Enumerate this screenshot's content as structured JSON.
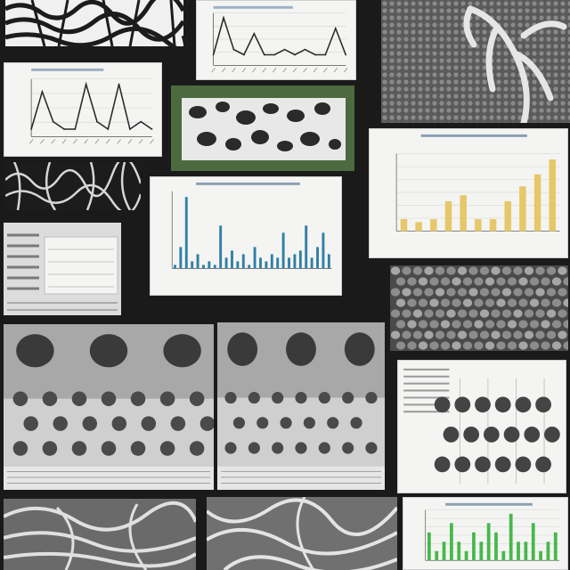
{
  "collage": {
    "theme_colors": {
      "background": "#1a1a1a",
      "card": "#f4f4f2",
      "line_series": "#2a2a2a",
      "bar_blue": "#2f7fa6",
      "bar_yellow": "#e6c86a",
      "bar_green": "#46b84a",
      "green_frame": "#4b6b3e"
    },
    "panels": [
      {
        "kind": "texture",
        "pattern": "zebra-stripes"
      },
      {
        "kind": "line-chart"
      },
      {
        "kind": "texture",
        "pattern": "branching-veins"
      },
      {
        "kind": "line-chart"
      },
      {
        "kind": "texture",
        "pattern": "cellular-foam",
        "frame": "green"
      },
      {
        "kind": "texture",
        "pattern": "scribbles"
      },
      {
        "kind": "bar-chart"
      },
      {
        "kind": "bar-chart"
      },
      {
        "kind": "document-page"
      },
      {
        "kind": "texture",
        "pattern": "pebbles"
      },
      {
        "kind": "photo",
        "subject": "spheres-on-surface"
      },
      {
        "kind": "photo",
        "subject": "spheres-on-surface"
      },
      {
        "kind": "diagram",
        "subject": "spheres-grid"
      },
      {
        "kind": "texture",
        "pattern": "folds"
      },
      {
        "kind": "texture",
        "pattern": "folds"
      },
      {
        "kind": "bar-chart"
      }
    ]
  },
  "chart_data": [
    {
      "type": "line",
      "title": "",
      "xlabel": "",
      "ylabel": "",
      "x": [
        1,
        2,
        3,
        4,
        5,
        6,
        7,
        8,
        9,
        10,
        11,
        12,
        13,
        14
      ],
      "series": [
        {
          "values": [
            2,
            9,
            3,
            2,
            6,
            2,
            2,
            3,
            2,
            3,
            2,
            2,
            7,
            2
          ]
        }
      ]
    },
    {
      "type": "line",
      "title": "",
      "xlabel": "",
      "ylabel": "",
      "x": [
        1,
        2,
        3,
        4,
        5,
        6,
        7,
        8,
        9,
        10,
        11,
        12
      ],
      "series": [
        {
          "values": [
            1,
            6,
            2,
            1,
            1,
            7,
            2,
            1,
            7,
            1,
            2,
            1
          ]
        }
      ]
    },
    {
      "type": "bar",
      "title": "",
      "xlabel": "",
      "ylabel": "",
      "categories": [
        "1",
        "2",
        "3",
        "4",
        "5",
        "6",
        "7",
        "8",
        "9",
        "10",
        "11",
        "12",
        "13",
        "14",
        "15",
        "16",
        "17",
        "18",
        "19",
        "20",
        "21",
        "22",
        "23",
        "24",
        "25",
        "26",
        "27",
        "28"
      ],
      "values": [
        1,
        6,
        20,
        2,
        4,
        1,
        2,
        1,
        12,
        3,
        5,
        2,
        4,
        1,
        6,
        3,
        2,
        4,
        3,
        10,
        3,
        4,
        5,
        12,
        3,
        6,
        10,
        4
      ]
    },
    {
      "type": "bar",
      "title": "",
      "xlabel": "",
      "ylabel": "",
      "categories": [
        "1",
        "2",
        "3",
        "4",
        "5",
        "6",
        "7",
        "8",
        "9",
        "10",
        "11"
      ],
      "values": [
        2,
        1.5,
        2,
        5,
        6,
        2,
        2,
        5,
        7.5,
        9.5,
        12
      ]
    },
    {
      "type": "bar",
      "title": "",
      "xlabel": "",
      "ylabel": "",
      "categories": [
        "1",
        "2",
        "3",
        "4",
        "5",
        "6",
        "7",
        "8",
        "9",
        "10",
        "11",
        "12",
        "13",
        "14",
        "15",
        "16",
        "17",
        "18"
      ],
      "values": [
        3,
        1,
        2,
        4,
        2,
        1,
        3,
        2,
        4,
        3,
        1,
        5,
        2,
        2,
        4,
        1,
        2,
        3
      ]
    }
  ]
}
